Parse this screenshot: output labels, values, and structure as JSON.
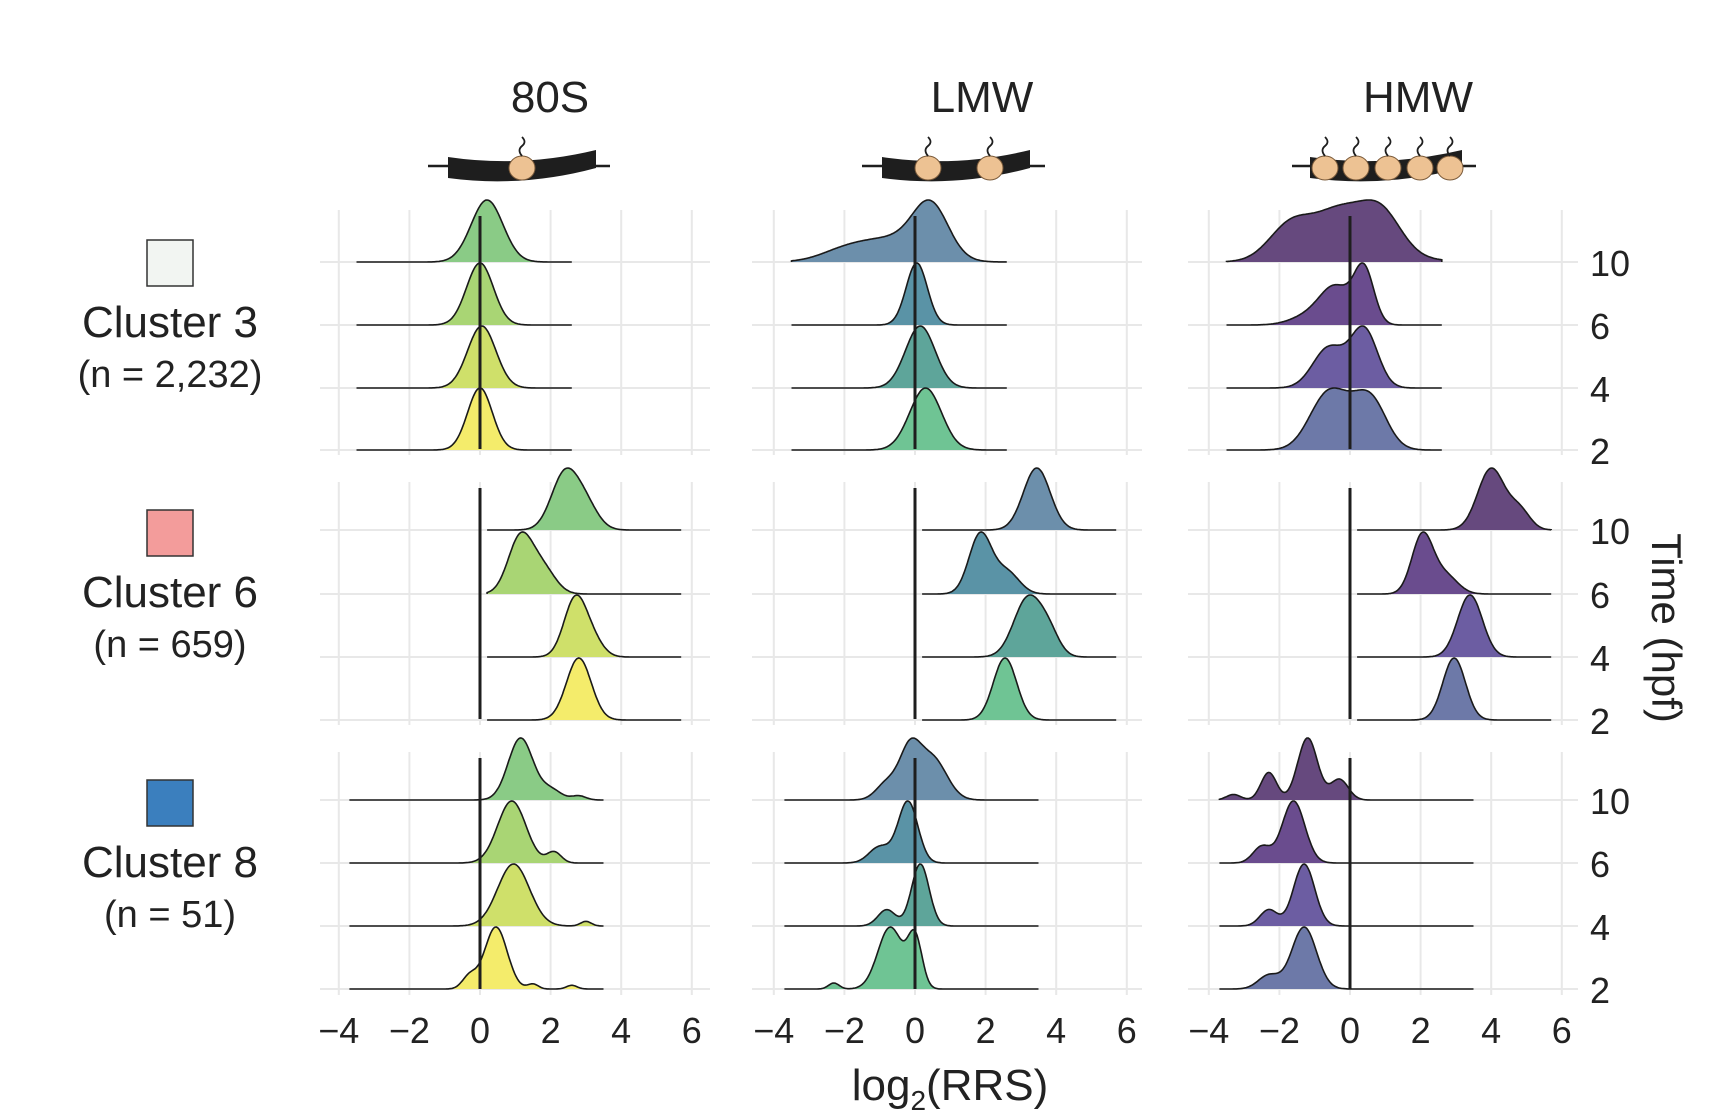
{
  "chart_data": {
    "type": "ridgeline",
    "xlabel_main": "log",
    "xlabel_sub": "2",
    "xlabel_rest": "(RRS)",
    "ylabel_right": "Time (hpf)",
    "x_ticks": [
      "−4",
      "−2",
      "0",
      "2",
      "4",
      "6"
    ],
    "x_tick_values": [
      -4,
      -2,
      0,
      2,
      4,
      6
    ],
    "xlim": [
      -4.4,
      6.5
    ],
    "time_points": [
      "10",
      "6",
      "4",
      "2"
    ],
    "colors": {
      "80S": [
        "#8ACB86",
        "#A9D574",
        "#CFE06A",
        "#F4EC6B"
      ],
      "LMW": [
        "#6C8FAB",
        "#5A93A6",
        "#5EA59A",
        "#6FC494"
      ],
      "HMW": [
        "#66497E",
        "#6A4C8E",
        "#6C5DA2",
        "#6D79A8"
      ]
    },
    "columns": [
      {
        "name": "80S",
        "ribosomes": 1
      },
      {
        "name": "LMW",
        "ribosomes": 2
      },
      {
        "name": "HMW",
        "ribosomes": 5
      }
    ],
    "clusters": [
      {
        "label": "Cluster 3",
        "n_label": "(n = 2,232)",
        "swatch": "#F2F5F2",
        "panels": [
          {
            "range": [
              -3.5,
              2.6
            ],
            "rows": [
              [
                [
                  0.2,
                  0.45,
                  0.85
                ]
              ],
              [
                [
                  0.0,
                  0.38,
                  1.0
                ]
              ],
              [
                [
                  0.05,
                  0.4,
                  0.9
                ]
              ],
              [
                [
                  0.0,
                  0.35,
                  1.0
                ]
              ]
            ]
          },
          {
            "range": [
              -3.5,
              2.6
            ],
            "rows": [
              [
                [
                  0.45,
                  0.5,
                  0.5
                ],
                [
                  -0.6,
                  0.9,
                  0.22
                ],
                [
                  -2.0,
                  0.7,
                  0.1
                ]
              ],
              [
                [
                  0.05,
                  0.3,
                  1.0
                ]
              ],
              [
                [
                  0.15,
                  0.42,
                  0.9
                ]
              ],
              [
                [
                  0.3,
                  0.45,
                  0.85
                ]
              ]
            ]
          },
          {
            "range": [
              -3.5,
              2.6
            ],
            "rows": [
              [
                [
                  -1.7,
                  0.6,
                  0.2
                ],
                [
                  -0.3,
                  0.7,
                  0.22
                ],
                [
                  0.9,
                  0.55,
                  0.22
                ],
                [
                  0.1,
                  1.2,
                  0.1
                ]
              ],
              [
                [
                  -0.4,
                  0.45,
                  0.45
                ],
                [
                  0.4,
                  0.28,
                  0.65
                ],
                [
                  -1.2,
                  0.5,
                  0.1
                ]
              ],
              [
                [
                  -0.6,
                  0.45,
                  0.45
                ],
                [
                  0.4,
                  0.38,
                  0.65
                ]
              ],
              [
                [
                  -0.7,
                  0.5,
                  0.4
                ],
                [
                  0.6,
                  0.45,
                  0.4
                ],
                [
                  -0.1,
                  0.5,
                  0.2
                ]
              ]
            ]
          }
        ]
      },
      {
        "label": "Cluster 6",
        "n_label": "(n = 659)",
        "swatch": "#F39C9B",
        "panels": [
          {
            "range": [
              0.2,
              5.7
            ],
            "rows": [
              [
                [
                  2.4,
                  0.38,
                  0.85
                ],
                [
                  3.0,
                  0.35,
                  0.35
                ]
              ],
              [
                [
                  1.15,
                  0.35,
                  0.85
                ],
                [
                  1.8,
                  0.35,
                  0.35
                ]
              ],
              [
                [
                  2.7,
                  0.32,
                  1.0
                ],
                [
                  3.2,
                  0.3,
                  0.25
                ]
              ],
              [
                [
                  2.8,
                  0.35,
                  1.0
                ]
              ]
            ]
          },
          {
            "range": [
              0.2,
              5.7
            ],
            "rows": [
              [
                [
                  3.45,
                  0.38,
                  0.95
                ]
              ],
              [
                [
                  1.85,
                  0.32,
                  0.95
                ],
                [
                  2.6,
                  0.35,
                  0.35
                ]
              ],
              [
                [
                  3.2,
                  0.4,
                  0.9
                ],
                [
                  3.8,
                  0.3,
                  0.3
                ]
              ],
              [
                [
                  2.55,
                  0.33,
                  1.0
                ]
              ]
            ]
          },
          {
            "range": [
              0.2,
              5.7
            ],
            "rows": [
              [
                [
                  4.0,
                  0.38,
                  0.95
                ],
                [
                  4.8,
                  0.3,
                  0.3
                ]
              ],
              [
                [
                  2.05,
                  0.3,
                  0.95
                ],
                [
                  2.7,
                  0.35,
                  0.3
                ]
              ],
              [
                [
                  3.4,
                  0.35,
                  1.0
                ]
              ],
              [
                [
                  2.95,
                  0.32,
                  1.0
                ]
              ]
            ]
          }
        ]
      },
      {
        "label": "Cluster 8",
        "n_label": "(n = 51)",
        "swatch": "#3B7FBE",
        "panels": [
          {
            "range": [
              -3.7,
              3.5
            ],
            "rows": [
              [
                [
                  1.15,
                  0.35,
                  0.9
                ],
                [
                  2.0,
                  0.3,
                  0.15
                ],
                [
                  2.8,
                  0.2,
                  0.06
                ]
              ],
              [
                [
                  0.9,
                  0.4,
                  0.85
                ],
                [
                  2.1,
                  0.2,
                  0.15
                ]
              ],
              [
                [
                  0.95,
                  0.45,
                  0.8
                ],
                [
                  3.0,
                  0.15,
                  0.06
                ]
              ],
              [
                [
                  0.45,
                  0.32,
                  1.0
                ],
                [
                  -0.3,
                  0.2,
                  0.2
                ],
                [
                  1.5,
                  0.15,
                  0.08
                ],
                [
                  2.6,
                  0.15,
                  0.06
                ]
              ]
            ]
          },
          {
            "range": [
              -3.7,
              3.5
            ],
            "rows": [
              [
                [
                  -0.15,
                  0.3,
                  0.72
                ],
                [
                  0.5,
                  0.4,
                  0.62
                ],
                [
                  -0.8,
                  0.3,
                  0.25
                ]
              ],
              [
                [
                  -0.2,
                  0.28,
                  0.95
                ],
                [
                  -1.0,
                  0.3,
                  0.25
                ]
              ],
              [
                [
                  0.15,
                  0.25,
                  0.95
                ],
                [
                  -0.8,
                  0.25,
                  0.25
                ]
              ],
              [
                [
                  -0.7,
                  0.35,
                  0.62
                ],
                [
                  0.0,
                  0.2,
                  0.5
                ],
                [
                  -2.3,
                  0.15,
                  0.06
                ]
              ]
            ]
          },
          {
            "range": [
              -3.7,
              3.5
            ],
            "rows": [
              [
                [
                  -1.2,
                  0.28,
                  0.9
                ],
                [
                  -2.3,
                  0.22,
                  0.4
                ],
                [
                  -0.3,
                  0.25,
                  0.3
                ],
                [
                  -3.3,
                  0.2,
                  0.08
                ]
              ],
              [
                [
                  -1.6,
                  0.32,
                  0.95
                ],
                [
                  -2.5,
                  0.25,
                  0.25
                ]
              ],
              [
                [
                  -1.3,
                  0.3,
                  0.95
                ],
                [
                  -2.3,
                  0.25,
                  0.25
                ]
              ],
              [
                [
                  -1.3,
                  0.35,
                  0.9
                ],
                [
                  -2.3,
                  0.3,
                  0.2
                ]
              ]
            ]
          }
        ]
      }
    ]
  }
}
